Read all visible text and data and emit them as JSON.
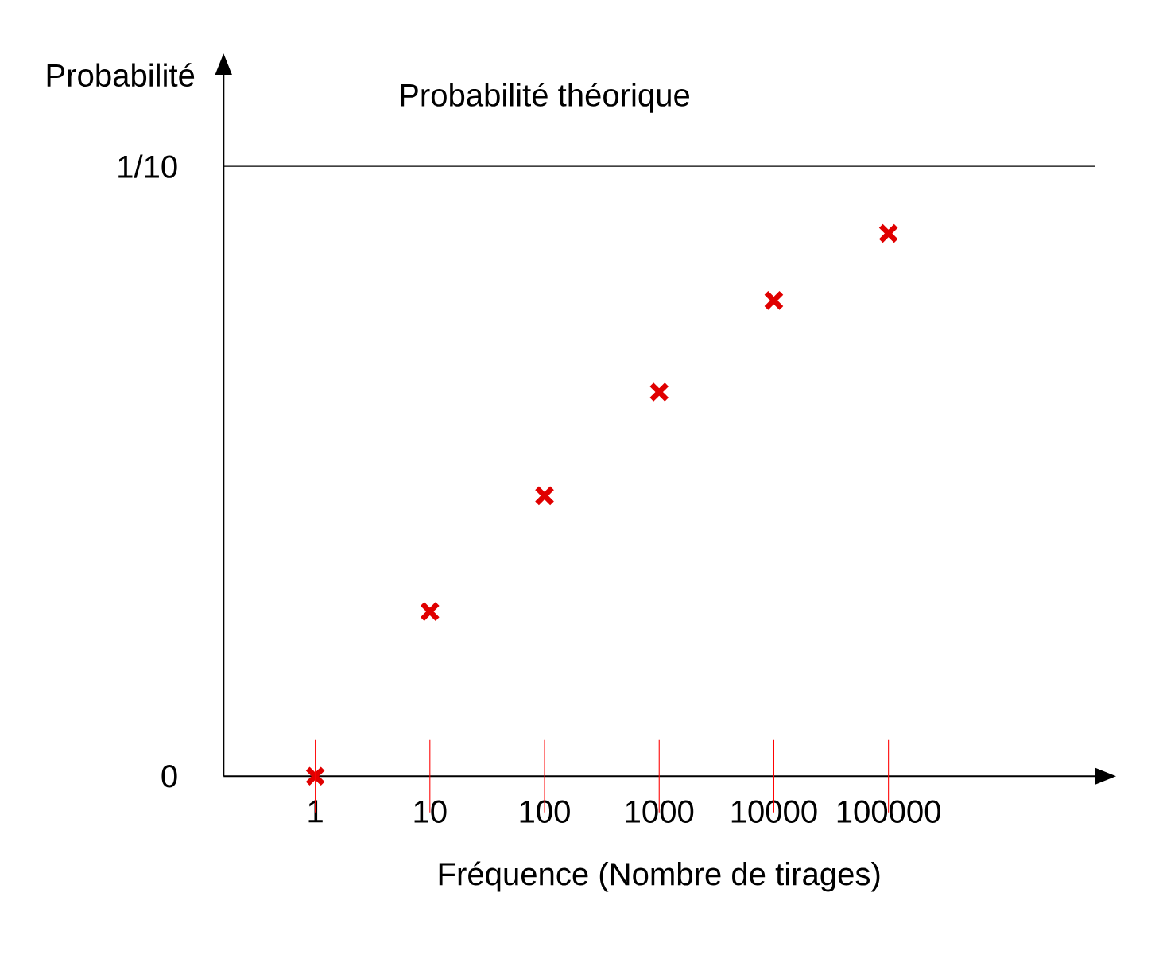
{
  "chart_data": {
    "type": "scatter",
    "xlabel": "Fréquence (Nombre de tirages)",
    "ylabel": "Probabilité",
    "categories": [
      "1",
      "10",
      "100",
      "1000",
      "10000",
      "100000"
    ],
    "values": [
      0,
      0.027,
      0.046,
      0.063,
      0.078,
      0.089
    ],
    "color": "#e00000",
    "marker": "cross",
    "ylim": [
      0,
      0.115
    ],
    "yticks": [
      0,
      {
        "value": 0.1,
        "label": "1/10"
      }
    ],
    "ref_lines": [
      {
        "axis": "y",
        "value": 0.1,
        "label": "Probabilité théorique",
        "color": "#000000"
      }
    ],
    "grid": false
  }
}
